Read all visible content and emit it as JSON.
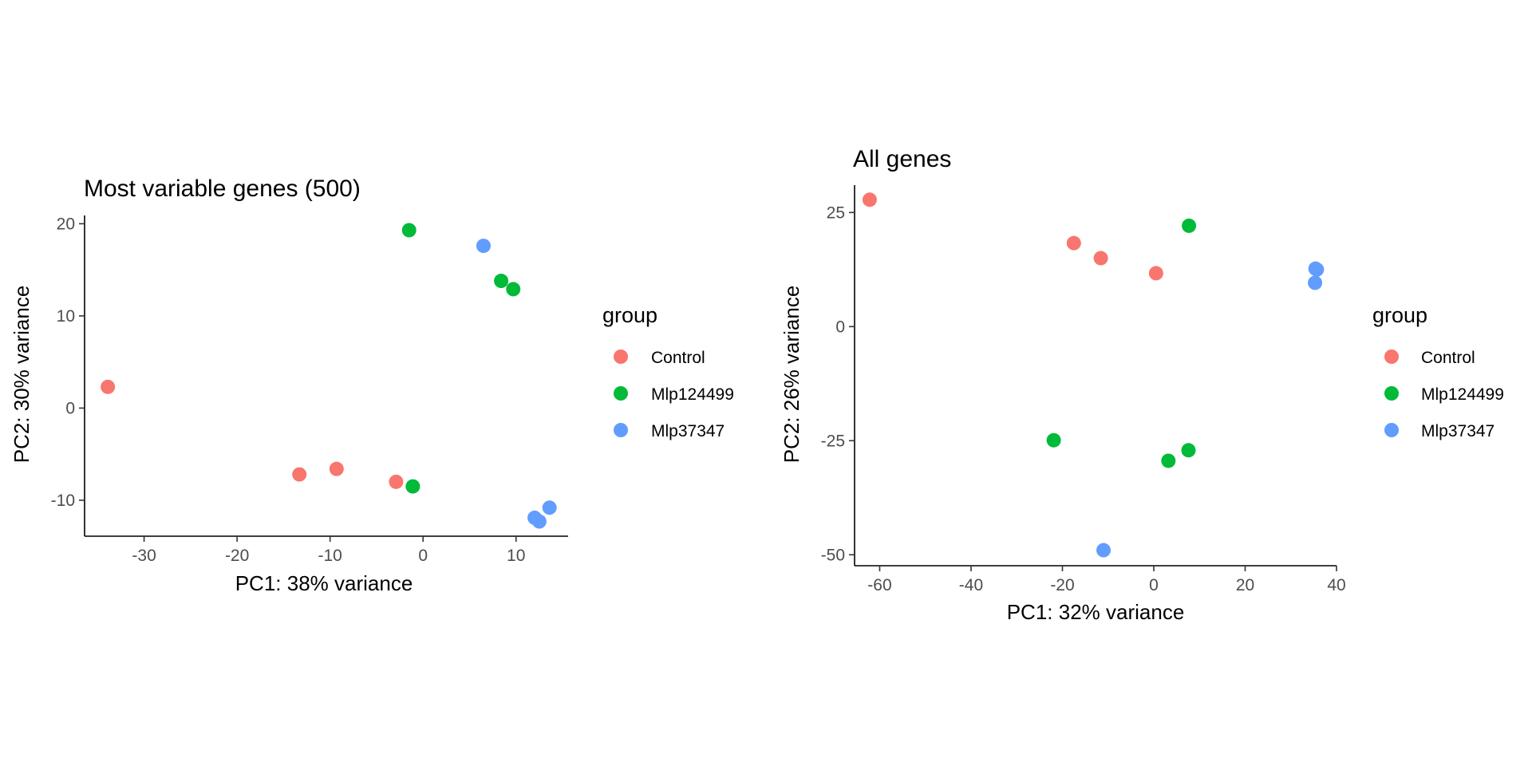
{
  "chart_data": [
    {
      "type": "scatter",
      "title": "Most variable genes (500)",
      "xlabel": "PC1: 38% variance",
      "ylabel": "PC2: 30% variance",
      "xlim": [
        -36.4,
        15.6
      ],
      "ylim": [
        -13.9,
        20.9
      ],
      "xticks": [
        "-30",
        "-20",
        "-10",
        "0",
        "10"
      ],
      "xtick_values": [
        -30,
        -20,
        -10,
        0,
        10
      ],
      "yticks": [
        "-10",
        "0",
        "10",
        "20"
      ],
      "ytick_values": [
        -10,
        0,
        10,
        20
      ],
      "grid": false,
      "legend": {
        "title": "group",
        "placement": "right"
      },
      "series": [
        {
          "name": "Control",
          "color": "#F8766D",
          "points": [
            [
              -33.9,
              2.3
            ],
            [
              -13.3,
              -7.2
            ],
            [
              -9.3,
              -6.6
            ],
            [
              -2.9,
              -8.0
            ]
          ]
        },
        {
          "name": "Mlp124499",
          "color": "#00BA38",
          "points": [
            [
              -1.5,
              19.3
            ],
            [
              8.4,
              13.8
            ],
            [
              9.7,
              12.9
            ],
            [
              -1.1,
              -8.5
            ]
          ]
        },
        {
          "name": "Mlp37347",
          "color": "#619CFF",
          "points": [
            [
              6.5,
              17.6
            ],
            [
              13.6,
              -10.8
            ],
            [
              12.0,
              -11.9
            ],
            [
              12.5,
              -12.3
            ]
          ]
        }
      ]
    },
    {
      "type": "scatter",
      "title": "All genes",
      "xlabel": "PC1: 32% variance",
      "ylabel": "PC2: 26% variance",
      "xlim": [
        -65.5,
        40.0
      ],
      "ylim": [
        -52.4,
        31.0
      ],
      "xticks": [
        "-60",
        "-40",
        "-20",
        "0",
        "20",
        "40"
      ],
      "xtick_values": [
        -60,
        -40,
        -20,
        0,
        20,
        40
      ],
      "yticks": [
        "-50",
        "-25",
        "0",
        "25"
      ],
      "ytick_values": [
        -50,
        -25,
        0,
        25
      ],
      "grid": false,
      "legend": {
        "title": "group",
        "placement": "right"
      },
      "series": [
        {
          "name": "Control",
          "color": "#F8766D",
          "points": [
            [
              -62.2,
              27.8
            ],
            [
              -17.5,
              18.3
            ],
            [
              -11.6,
              15.0
            ],
            [
              0.5,
              11.7
            ]
          ]
        },
        {
          "name": "Mlp124499",
          "color": "#00BA38",
          "points": [
            [
              7.7,
              22.1
            ],
            [
              -21.9,
              -24.9
            ],
            [
              3.2,
              -29.4
            ],
            [
              7.6,
              -27.1
            ]
          ]
        },
        {
          "name": "Mlp37347",
          "color": "#619CFF",
          "points": [
            [
              35.4,
              12.7
            ],
            [
              35.7,
              12.5
            ],
            [
              35.3,
              9.6
            ],
            [
              -11.0,
              -49.0
            ]
          ]
        }
      ]
    }
  ]
}
